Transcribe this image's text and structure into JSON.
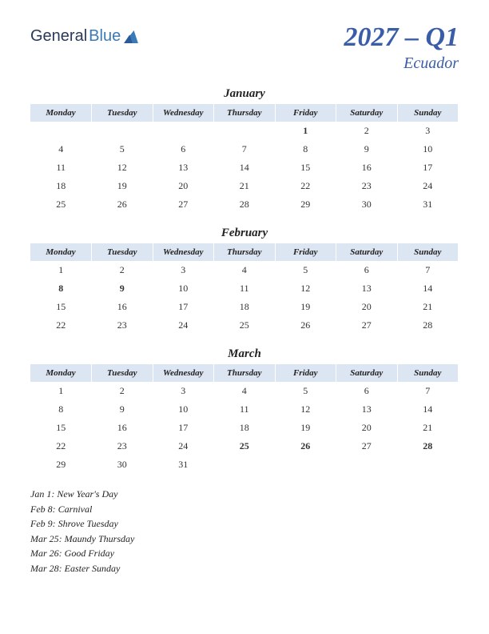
{
  "logo": {
    "part1": "General",
    "part2": "Blue"
  },
  "title": {
    "quarter": "2027 – Q1",
    "country": "Ecuador"
  },
  "day_headers": [
    "Monday",
    "Tuesday",
    "Wednesday",
    "Thursday",
    "Friday",
    "Saturday",
    "Sunday"
  ],
  "colors": {
    "header_bg": "#dce5f2",
    "title_color": "#3a5da8",
    "holiday_color": "#c62020",
    "text_color": "#333333",
    "logo1": "#2a3a5a",
    "logo2": "#3a7ab8"
  },
  "months": [
    {
      "name": "January",
      "weeks": [
        [
          "",
          "",
          "",
          "",
          "1",
          "2",
          "3"
        ],
        [
          "4",
          "5",
          "6",
          "7",
          "8",
          "9",
          "10"
        ],
        [
          "11",
          "12",
          "13",
          "14",
          "15",
          "16",
          "17"
        ],
        [
          "18",
          "19",
          "20",
          "21",
          "22",
          "23",
          "24"
        ],
        [
          "25",
          "26",
          "27",
          "28",
          "29",
          "30",
          "31"
        ]
      ],
      "holidays": [
        "1"
      ]
    },
    {
      "name": "February",
      "weeks": [
        [
          "1",
          "2",
          "3",
          "4",
          "5",
          "6",
          "7"
        ],
        [
          "8",
          "9",
          "10",
          "11",
          "12",
          "13",
          "14"
        ],
        [
          "15",
          "16",
          "17",
          "18",
          "19",
          "20",
          "21"
        ],
        [
          "22",
          "23",
          "24",
          "25",
          "26",
          "27",
          "28"
        ]
      ],
      "holidays": [
        "8",
        "9"
      ]
    },
    {
      "name": "March",
      "weeks": [
        [
          "1",
          "2",
          "3",
          "4",
          "5",
          "6",
          "7"
        ],
        [
          "8",
          "9",
          "10",
          "11",
          "12",
          "13",
          "14"
        ],
        [
          "15",
          "16",
          "17",
          "18",
          "19",
          "20",
          "21"
        ],
        [
          "22",
          "23",
          "24",
          "25",
          "26",
          "27",
          "28"
        ],
        [
          "29",
          "30",
          "31",
          "",
          "",
          "",
          ""
        ]
      ],
      "holidays": [
        "25",
        "26",
        "28"
      ]
    }
  ],
  "holiday_list": [
    "Jan 1: New Year's Day",
    "Feb 8: Carnival",
    "Feb 9: Shrove Tuesday",
    "Mar 25: Maundy Thursday",
    "Mar 26: Good Friday",
    "Mar 28: Easter Sunday"
  ]
}
